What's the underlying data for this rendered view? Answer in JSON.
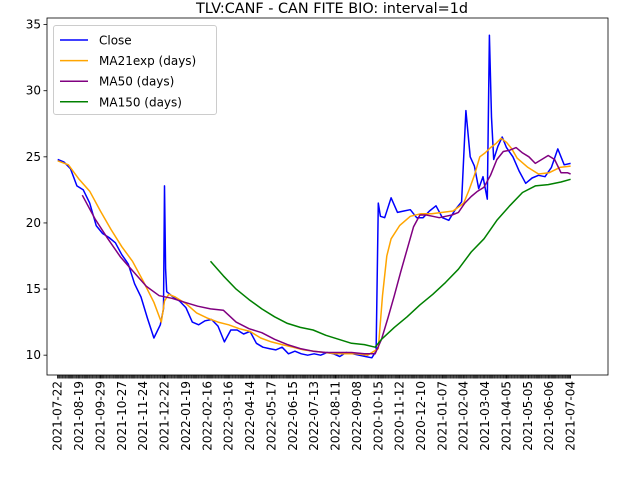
{
  "chart_data": {
    "type": "line",
    "title": "TLV:CANF - CAN FITE BIO: interval=1d",
    "xlabel": "",
    "ylabel": "",
    "ylim": [
      8.5,
      35.5
    ],
    "yticks": [
      10,
      15,
      20,
      25,
      30,
      35
    ],
    "xlim": [
      -10,
      515
    ],
    "x_tick_labels": [
      "2021-07-22",
      "2021-08-19",
      "2021-09-29",
      "2021-10-27",
      "2021-11-24",
      "2021-12-22",
      "2022-01-19",
      "2022-02-16",
      "2022-03-16",
      "2022-04-14",
      "2022-05-17",
      "2022-06-15",
      "2022-07-13",
      "2022-08-11",
      "2022-09-08",
      "2020-10-15",
      "2020-11-12",
      "2020-12-10",
      "2021-01-07",
      "2021-02-04",
      "2021-03-04",
      "2021-04-05",
      "2021-05-05",
      "2021-06-06",
      "2021-07-04"
    ],
    "x_tick_pos": [
      0,
      20,
      40,
      60,
      80,
      100,
      120,
      140,
      160,
      180,
      200,
      220,
      240,
      260,
      280,
      300,
      320,
      340,
      360,
      380,
      400,
      420,
      440,
      460,
      480
    ],
    "legend": "top-left",
    "grid": false,
    "series": [
      {
        "name": "Close",
        "color": "#0000ff",
        "x": [
          0,
          6,
          12,
          18,
          24,
          30,
          36,
          42,
          48,
          54,
          60,
          66,
          72,
          78,
          84,
          90,
          96,
          99,
          100,
          101,
          102,
          108,
          114,
          120,
          126,
          132,
          138,
          144,
          150,
          156,
          162,
          168,
          174,
          180,
          186,
          192,
          198,
          204,
          210,
          216,
          222,
          228,
          234,
          240,
          246,
          252,
          258,
          264,
          270,
          276,
          282,
          288,
          294,
          298,
          300,
          302,
          306,
          312,
          318,
          324,
          330,
          336,
          342,
          348,
          354,
          360,
          366,
          372,
          378,
          382,
          386,
          390,
          394,
          398,
          402,
          404,
          406,
          408,
          412,
          416,
          420,
          426,
          432,
          438,
          444,
          450,
          456,
          462,
          468,
          474,
          480
        ],
        "y": [
          24.8,
          24.6,
          24.1,
          22.8,
          22.5,
          21.5,
          19.8,
          19.2,
          18.9,
          18.5,
          17.6,
          16.9,
          15.4,
          14.4,
          12.8,
          11.3,
          12.3,
          13.5,
          22.8,
          16.5,
          14.8,
          14.4,
          14.1,
          13.6,
          12.5,
          12.3,
          12.6,
          12.7,
          12.2,
          11.0,
          11.9,
          11.9,
          11.6,
          11.8,
          10.9,
          10.6,
          10.5,
          10.4,
          10.6,
          10.1,
          10.3,
          10.1,
          10.0,
          10.1,
          10.0,
          10.2,
          10.1,
          9.9,
          10.2,
          10.1,
          10.0,
          9.9,
          9.8,
          10.3,
          21.5,
          20.5,
          20.4,
          21.9,
          20.8,
          20.9,
          21.0,
          20.4,
          20.4,
          20.9,
          21.3,
          20.4,
          20.2,
          21.0,
          21.6,
          28.5,
          25.0,
          24.3,
          22.6,
          23.5,
          21.8,
          34.2,
          28.0,
          24.8,
          25.8,
          26.5,
          25.7,
          25.0,
          23.9,
          23.0,
          23.4,
          23.6,
          23.5,
          24.2,
          25.6,
          24.4,
          24.5
        ]
      },
      {
        "name": "MA21exp (days)",
        "color": "#ffa500",
        "x": [
          0,
          10,
          20,
          30,
          40,
          50,
          60,
          70,
          80,
          90,
          97,
          100,
          104,
          110,
          120,
          130,
          140,
          150,
          160,
          170,
          180,
          190,
          200,
          210,
          220,
          230,
          240,
          250,
          260,
          270,
          280,
          290,
          300,
          304,
          308,
          312,
          320,
          330,
          340,
          350,
          360,
          370,
          380,
          385,
          390,
          395,
          400,
          405,
          410,
          415,
          420,
          425,
          430,
          440,
          450,
          460,
          470,
          480
        ],
        "y": [
          24.7,
          24.4,
          23.3,
          22.4,
          20.9,
          19.5,
          18.2,
          17.1,
          15.6,
          14.0,
          12.5,
          14.1,
          14.6,
          14.4,
          13.9,
          13.2,
          12.8,
          12.5,
          12.3,
          12.0,
          11.8,
          11.3,
          11.0,
          10.8,
          10.6,
          10.4,
          10.3,
          10.2,
          10.1,
          10.1,
          10.1,
          10.0,
          10.5,
          14.5,
          17.5,
          18.8,
          19.8,
          20.5,
          20.7,
          20.7,
          20.8,
          20.9,
          21.5,
          22.5,
          23.6,
          25.0,
          25.3,
          25.7,
          26.0,
          26.4,
          26.1,
          25.6,
          24.9,
          24.2,
          23.7,
          23.8,
          24.2,
          24.3
        ]
      },
      {
        "name": "MA50 (days)",
        "color": "#800080",
        "x": [
          23,
          35,
          47,
          59,
          71,
          83,
          95,
          107,
          119,
          131,
          143,
          155,
          167,
          179,
          191,
          203,
          215,
          227,
          239,
          251,
          263,
          275,
          287,
          297,
          303,
          309,
          315,
          321,
          327,
          333,
          339,
          345,
          351,
          357,
          363,
          369,
          375,
          381,
          387,
          393,
          399,
          405,
          411,
          417,
          423,
          429,
          435,
          441,
          447,
          453,
          459,
          465,
          471,
          477,
          480
        ],
        "y": [
          22.1,
          20.3,
          18.8,
          17.4,
          16.3,
          15.2,
          14.5,
          14.3,
          14.0,
          13.7,
          13.5,
          13.4,
          12.5,
          12.0,
          11.7,
          11.2,
          10.8,
          10.5,
          10.3,
          10.2,
          10.2,
          10.2,
          10.1,
          10.1,
          11.2,
          12.8,
          14.5,
          16.3,
          18.0,
          19.7,
          20.6,
          20.6,
          20.5,
          20.4,
          20.5,
          20.6,
          20.8,
          21.5,
          22.0,
          22.4,
          22.7,
          23.6,
          24.8,
          25.4,
          25.5,
          25.7,
          25.3,
          25.0,
          24.5,
          24.8,
          25.1,
          24.8,
          23.8,
          23.8,
          23.7
        ]
      },
      {
        "name": "MA150 (days)",
        "color": "#008000",
        "x": [
          143,
          155,
          167,
          179,
          191,
          203,
          215,
          227,
          239,
          251,
          263,
          275,
          287,
          297,
          303,
          315,
          327,
          339,
          351,
          363,
          375,
          387,
          399,
          411,
          423,
          435,
          447,
          459,
          471,
          480
        ],
        "y": [
          17.1,
          16.0,
          15.0,
          14.2,
          13.5,
          12.9,
          12.4,
          12.1,
          11.9,
          11.5,
          11.2,
          10.9,
          10.8,
          10.6,
          11.2,
          12.1,
          12.9,
          13.8,
          14.6,
          15.5,
          16.5,
          17.8,
          18.8,
          20.2,
          21.3,
          22.3,
          22.8,
          22.9,
          23.1,
          23.3
        ]
      }
    ]
  }
}
